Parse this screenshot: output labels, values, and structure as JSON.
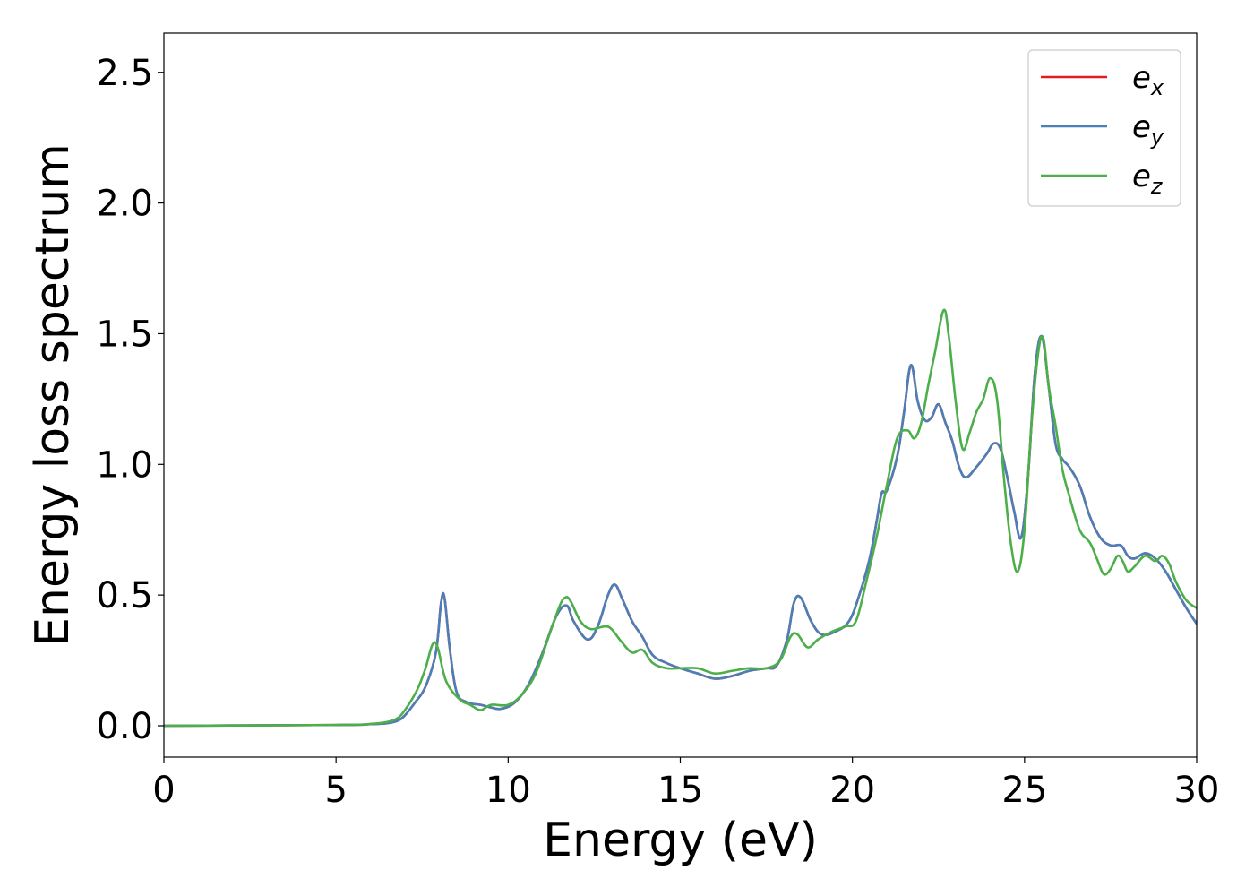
{
  "chart_data": {
    "type": "line",
    "title": "",
    "xlabel": "Energy (eV)",
    "ylabel": "Energy loss spectrum",
    "xlim": [
      0,
      30
    ],
    "ylim": [
      -0.12,
      2.65
    ],
    "xticks": [
      0,
      5,
      10,
      15,
      20,
      25,
      30
    ],
    "yticks": [
      0.0,
      0.5,
      1.0,
      1.5,
      2.0,
      2.5
    ],
    "xtick_labels": [
      "0",
      "5",
      "10",
      "15",
      "20",
      "25",
      "30"
    ],
    "ytick_labels": [
      "0.0",
      "0.5",
      "1.0",
      "1.5",
      "2.0",
      "2.5"
    ],
    "grid": false,
    "legend": {
      "placement": "top-right"
    },
    "series": [
      {
        "name": "e_x",
        "label_base": "e",
        "label_sub": "x",
        "color": "#e41a1c",
        "x": [
          0,
          5,
          6,
          6.5,
          6.8,
          7,
          7.3,
          7.6,
          7.9,
          8.05,
          8.15,
          8.3,
          8.5,
          8.8,
          9.2,
          9.5,
          9.8,
          10.2,
          10.6,
          11,
          11.4,
          11.7,
          11.9,
          12.3,
          12.6,
          12.9,
          13.1,
          13.3,
          13.6,
          13.9,
          14.2,
          14.6,
          15,
          15.5,
          16,
          16.5,
          17,
          17.5,
          17.8,
          18.1,
          18.3,
          18.5,
          18.8,
          19.1,
          19.5,
          19.9,
          20.2,
          20.5,
          20.7,
          20.85,
          21,
          21.3,
          21.5,
          21.7,
          21.9,
          22.1,
          22.3,
          22.5,
          22.7,
          22.9,
          23.1,
          23.3,
          23.6,
          23.9,
          24.1,
          24.3,
          24.5,
          24.7,
          24.9,
          25.1,
          25.3,
          25.5,
          25.7,
          25.9,
          26.1,
          26.3,
          26.6,
          26.9,
          27.2,
          27.5,
          27.8,
          28,
          28.2,
          28.5,
          28.8,
          29.1,
          29.4,
          29.7,
          30
        ],
        "y": [
          0,
          0.003,
          0.006,
          0.01,
          0.02,
          0.04,
          0.09,
          0.15,
          0.28,
          0.47,
          0.49,
          0.3,
          0.13,
          0.09,
          0.08,
          0.07,
          0.065,
          0.09,
          0.16,
          0.28,
          0.42,
          0.46,
          0.4,
          0.33,
          0.38,
          0.5,
          0.54,
          0.49,
          0.4,
          0.34,
          0.27,
          0.24,
          0.22,
          0.2,
          0.18,
          0.19,
          0.21,
          0.22,
          0.23,
          0.33,
          0.47,
          0.49,
          0.4,
          0.35,
          0.36,
          0.4,
          0.5,
          0.64,
          0.78,
          0.89,
          0.9,
          1.03,
          1.2,
          1.38,
          1.24,
          1.17,
          1.18,
          1.23,
          1.16,
          1.09,
          0.99,
          0.95,
          0.99,
          1.04,
          1.08,
          1.06,
          0.95,
          0.82,
          0.72,
          0.95,
          1.35,
          1.49,
          1.3,
          1.08,
          1.02,
          0.99,
          0.92,
          0.8,
          0.72,
          0.69,
          0.69,
          0.65,
          0.64,
          0.66,
          0.64,
          0.59,
          0.52,
          0.45,
          0.39
        ]
      },
      {
        "name": "e_y",
        "label_base": "e",
        "label_sub": "y",
        "color": "#4a7fb8",
        "x": [
          0,
          5,
          6,
          6.5,
          6.8,
          7,
          7.3,
          7.6,
          7.9,
          8.05,
          8.15,
          8.3,
          8.5,
          8.8,
          9.2,
          9.5,
          9.8,
          10.2,
          10.6,
          11,
          11.4,
          11.7,
          11.9,
          12.3,
          12.6,
          12.9,
          13.1,
          13.3,
          13.6,
          13.9,
          14.2,
          14.6,
          15,
          15.5,
          16,
          16.5,
          17,
          17.5,
          17.8,
          18.1,
          18.3,
          18.5,
          18.8,
          19.1,
          19.5,
          19.9,
          20.2,
          20.5,
          20.7,
          20.85,
          21,
          21.3,
          21.5,
          21.7,
          21.9,
          22.1,
          22.3,
          22.5,
          22.7,
          22.9,
          23.1,
          23.3,
          23.6,
          23.9,
          24.1,
          24.3,
          24.5,
          24.7,
          24.9,
          25.1,
          25.3,
          25.5,
          25.7,
          25.9,
          26.1,
          26.3,
          26.6,
          26.9,
          27.2,
          27.5,
          27.8,
          28,
          28.2,
          28.5,
          28.8,
          29.1,
          29.4,
          29.7,
          30
        ],
        "y": [
          0,
          0.003,
          0.006,
          0.01,
          0.02,
          0.04,
          0.09,
          0.15,
          0.28,
          0.47,
          0.49,
          0.3,
          0.13,
          0.09,
          0.08,
          0.07,
          0.065,
          0.09,
          0.16,
          0.28,
          0.42,
          0.46,
          0.4,
          0.33,
          0.38,
          0.5,
          0.54,
          0.49,
          0.4,
          0.34,
          0.27,
          0.24,
          0.22,
          0.2,
          0.18,
          0.19,
          0.21,
          0.22,
          0.23,
          0.33,
          0.47,
          0.49,
          0.4,
          0.35,
          0.36,
          0.4,
          0.5,
          0.64,
          0.78,
          0.89,
          0.9,
          1.03,
          1.2,
          1.38,
          1.24,
          1.17,
          1.18,
          1.23,
          1.16,
          1.09,
          0.99,
          0.95,
          0.99,
          1.04,
          1.08,
          1.06,
          0.95,
          0.82,
          0.72,
          0.95,
          1.35,
          1.49,
          1.3,
          1.08,
          1.02,
          0.99,
          0.92,
          0.8,
          0.72,
          0.69,
          0.69,
          0.65,
          0.64,
          0.66,
          0.64,
          0.59,
          0.52,
          0.45,
          0.39
        ]
      },
      {
        "name": "e_z",
        "label_base": "e",
        "label_sub": "z",
        "color": "#4daf4a",
        "x": [
          0,
          5,
          6,
          6.5,
          6.8,
          7,
          7.2,
          7.4,
          7.6,
          7.8,
          7.95,
          8.2,
          8.6,
          8.9,
          9.2,
          9.5,
          10,
          10.4,
          10.8,
          11.2,
          11.5,
          11.65,
          11.8,
          12.1,
          12.4,
          12.8,
          13,
          13.3,
          13.6,
          13.9,
          14.2,
          14.6,
          15,
          15.5,
          16,
          16.5,
          17,
          17.5,
          17.9,
          18.2,
          18.4,
          18.7,
          19,
          19.4,
          19.8,
          20.1,
          20.4,
          20.7,
          21,
          21.3,
          21.6,
          21.8,
          22,
          22.2,
          22.4,
          22.65,
          22.8,
          23,
          23.2,
          23.4,
          23.6,
          23.8,
          24,
          24.2,
          24.4,
          24.6,
          24.8,
          25,
          25.2,
          25.4,
          25.55,
          25.7,
          25.9,
          26.1,
          26.3,
          26.6,
          26.9,
          27.1,
          27.3,
          27.5,
          27.7,
          27.85,
          28,
          28.2,
          28.5,
          28.8,
          29,
          29.2,
          29.4,
          29.7,
          30
        ],
        "y": [
          0,
          0.003,
          0.007,
          0.015,
          0.03,
          0.06,
          0.1,
          0.15,
          0.22,
          0.31,
          0.3,
          0.17,
          0.1,
          0.08,
          0.06,
          0.08,
          0.08,
          0.12,
          0.2,
          0.35,
          0.46,
          0.49,
          0.48,
          0.4,
          0.37,
          0.38,
          0.37,
          0.32,
          0.28,
          0.29,
          0.24,
          0.22,
          0.22,
          0.22,
          0.2,
          0.21,
          0.22,
          0.22,
          0.25,
          0.34,
          0.35,
          0.3,
          0.33,
          0.36,
          0.38,
          0.4,
          0.55,
          0.72,
          0.92,
          1.1,
          1.13,
          1.1,
          1.16,
          1.3,
          1.43,
          1.59,
          1.49,
          1.24,
          1.06,
          1.12,
          1.2,
          1.25,
          1.33,
          1.25,
          0.95,
          0.7,
          0.59,
          0.75,
          1.15,
          1.43,
          1.48,
          1.3,
          1.15,
          0.98,
          0.88,
          0.75,
          0.7,
          0.64,
          0.58,
          0.6,
          0.65,
          0.63,
          0.59,
          0.61,
          0.65,
          0.63,
          0.65,
          0.62,
          0.55,
          0.48,
          0.45
        ]
      }
    ]
  }
}
